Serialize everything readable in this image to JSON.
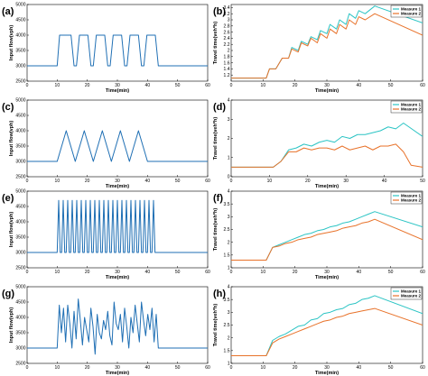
{
  "figure": {
    "panels": [
      {
        "id": "a",
        "label": "(a)"
      },
      {
        "id": "b",
        "label": "(b)"
      },
      {
        "id": "c",
        "label": "(c)"
      },
      {
        "id": "d",
        "label": "(d)"
      },
      {
        "id": "e",
        "label": "(e)"
      },
      {
        "id": "f",
        "label": "(f)"
      },
      {
        "id": "g",
        "label": "(g)"
      },
      {
        "id": "h",
        "label": "(h)"
      }
    ]
  },
  "colors": {
    "flow": "#1f6fb4",
    "measure1": "#2bc4c4",
    "measure2": "#e8722a",
    "axis": "#000000"
  },
  "chart_data": [
    {
      "id": "a",
      "type": "line",
      "xlabel": "Time(min)",
      "ylabel": "Input flow(vph)",
      "xlim": [
        0,
        60
      ],
      "ylim": [
        2500,
        5000
      ],
      "xticks": [
        0,
        10,
        20,
        30,
        40,
        50,
        60
      ],
      "yticks": [
        2500,
        3000,
        3500,
        4000,
        4500,
        5000
      ],
      "series": [
        {
          "x": [
            0,
            10,
            10.8,
            11.8,
            14.6,
            15.6,
            16.4,
            17.4,
            20.2,
            21.2,
            22,
            23,
            25.8,
            26.8,
            27.6,
            28.6,
            31.4,
            32.4,
            33.2,
            34.2,
            37,
            38,
            38.8,
            39.8,
            42.6,
            43.6,
            60
          ],
          "y": [
            3000,
            3000,
            4000,
            4000,
            4000,
            3000,
            3000,
            4000,
            4000,
            3000,
            3000,
            4000,
            4000,
            3000,
            3000,
            4000,
            4000,
            3000,
            3000,
            4000,
            4000,
            3000,
            3000,
            4000,
            4000,
            3000,
            3000
          ]
        }
      ]
    },
    {
      "id": "b",
      "type": "line",
      "xlabel": "Time(min)",
      "ylabel": "Travel time(veh*h)",
      "xlim": [
        0,
        60
      ],
      "ylim": [
        1,
        3.5
      ],
      "xticks": [
        0,
        10,
        20,
        30,
        40,
        50,
        60
      ],
      "yticks": [
        1.2,
        1.4,
        1.6,
        1.8,
        2,
        2.2,
        2.4,
        2.6,
        2.8,
        3,
        3.2,
        3.4
      ],
      "legend": {
        "position": "top-right",
        "entries": [
          "Measure 1",
          "Measure 2"
        ]
      },
      "series": [
        {
          "name": "Measure 1",
          "x": [
            0,
            11,
            12,
            14,
            16,
            18,
            19,
            21,
            22,
            24,
            25,
            27,
            28,
            30,
            31,
            33,
            34,
            36,
            37,
            39,
            40,
            42,
            45,
            60
          ],
          "y": [
            1.1,
            1.1,
            1.4,
            1.4,
            1.75,
            1.75,
            2.1,
            2,
            2.3,
            2.2,
            2.45,
            2.35,
            2.65,
            2.55,
            2.85,
            2.7,
            3.0,
            2.85,
            3.2,
            3.05,
            3.3,
            3.2,
            3.45,
            2.9
          ]
        },
        {
          "name": "Measure 2",
          "x": [
            0,
            11,
            12,
            14,
            16,
            18,
            19,
            21,
            22,
            24,
            25,
            27,
            28,
            30,
            31,
            33,
            34,
            36,
            37,
            39,
            40,
            42,
            45,
            60
          ],
          "y": [
            1.1,
            1.1,
            1.4,
            1.4,
            1.75,
            1.75,
            2.05,
            1.95,
            2.25,
            2.15,
            2.4,
            2.25,
            2.55,
            2.4,
            2.7,
            2.55,
            2.85,
            2.7,
            3.0,
            2.85,
            3.1,
            3.0,
            3.2,
            2.5
          ]
        }
      ]
    },
    {
      "id": "c",
      "type": "line",
      "xlabel": "Time(min)",
      "ylabel": "Input flow(vph)",
      "xlim": [
        0,
        60
      ],
      "ylim": [
        2500,
        5000
      ],
      "xticks": [
        0,
        10,
        20,
        30,
        40,
        50,
        60
      ],
      "yticks": [
        2500,
        3000,
        3500,
        4000,
        4500,
        5000
      ],
      "series": [
        {
          "x": [
            0,
            10,
            13,
            16,
            19,
            22,
            25,
            28,
            31,
            34,
            37,
            40,
            43,
            60
          ],
          "y": [
            3000,
            3000,
            4000,
            3000,
            4000,
            3000,
            4000,
            3000,
            4000,
            3000,
            4000,
            3000,
            3000,
            3000
          ]
        }
      ]
    },
    {
      "id": "d",
      "type": "line",
      "xlabel": "Time(min)",
      "ylabel": "Travel time(veh*h)",
      "xlim": [
        0,
        50
      ],
      "ylim": [
        0,
        4
      ],
      "xticks": [
        0,
        10,
        20,
        30,
        40,
        50
      ],
      "yticks": [
        0,
        1,
        2,
        3,
        4
      ],
      "legend": {
        "position": "top-right",
        "entries": [
          "Measure 1",
          "Measure 2"
        ]
      },
      "series": [
        {
          "name": "Measure 1",
          "x": [
            0,
            11,
            13,
            15,
            17,
            19,
            21,
            23,
            25,
            27,
            29,
            31,
            33,
            35,
            37,
            39,
            41,
            43,
            45,
            50
          ],
          "y": [
            0.5,
            0.5,
            0.8,
            1.4,
            1.5,
            1.7,
            1.6,
            1.8,
            1.9,
            1.8,
            2.1,
            2.0,
            2.2,
            2.2,
            2.3,
            2.4,
            2.6,
            2.5,
            2.8,
            2.1
          ]
        },
        {
          "name": "Measure 2",
          "x": [
            0,
            11,
            13,
            15,
            17,
            19,
            21,
            23,
            25,
            27,
            29,
            31,
            33,
            35,
            37,
            39,
            41,
            43,
            45,
            47,
            50
          ],
          "y": [
            0.5,
            0.5,
            0.8,
            1.3,
            1.3,
            1.5,
            1.4,
            1.5,
            1.5,
            1.4,
            1.6,
            1.4,
            1.5,
            1.6,
            1.4,
            1.6,
            1.6,
            1.7,
            1.3,
            0.6,
            0.5
          ]
        }
      ]
    },
    {
      "id": "e",
      "type": "line",
      "xlabel": "Time(min)",
      "ylabel": "Input flow(vph)",
      "xlim": [
        0,
        60
      ],
      "ylim": [
        2500,
        5000
      ],
      "xticks": [
        0,
        10,
        20,
        30,
        40,
        50,
        60
      ],
      "yticks": [
        2500,
        3000,
        3500,
        4000,
        4500,
        5000
      ],
      "series": [
        {
          "x": [
            0,
            10,
            10.5,
            11,
            11.5,
            12,
            12.5,
            13,
            13.5,
            14,
            14.5,
            15,
            15.5,
            16,
            16.5,
            17,
            17.5,
            18,
            18.5,
            19,
            19.5,
            20,
            20.5,
            21,
            21.5,
            22,
            22.5,
            23,
            23.5,
            24,
            24.5,
            25,
            25.5,
            26,
            26.5,
            27,
            27.5,
            28,
            28.5,
            29,
            29.5,
            30,
            30.5,
            31,
            31.5,
            32,
            32.5,
            33,
            33.5,
            34,
            34.5,
            35,
            35.5,
            36,
            36.5,
            37,
            37.5,
            38,
            38.5,
            39,
            39.5,
            40,
            40.5,
            41,
            41.5,
            42,
            42.5,
            43,
            60
          ],
          "y": [
            3000,
            3000,
            4700,
            3000,
            3000,
            4700,
            3000,
            3000,
            4700,
            3000,
            3000,
            4700,
            3000,
            3000,
            4700,
            3000,
            3000,
            4700,
            3000,
            3000,
            4700,
            3000,
            3000,
            4700,
            3000,
            3000,
            4700,
            3000,
            3000,
            4700,
            3000,
            3000,
            4700,
            3000,
            3000,
            4700,
            3000,
            3000,
            4700,
            3000,
            3000,
            4700,
            3000,
            3000,
            4700,
            3000,
            3000,
            4700,
            3000,
            3000,
            4700,
            3000,
            3000,
            4700,
            3000,
            3000,
            4700,
            3000,
            3000,
            4700,
            3000,
            3000,
            4700,
            3000,
            3000,
            4700,
            3000,
            3000,
            3000
          ]
        }
      ]
    },
    {
      "id": "f",
      "type": "line",
      "xlabel": "Time(min)",
      "ylabel": "Travel time(veh*h)",
      "xlim": [
        0,
        60
      ],
      "ylim": [
        1,
        4
      ],
      "xticks": [
        0,
        10,
        20,
        30,
        40,
        50,
        60
      ],
      "yticks": [
        1,
        1.5,
        2,
        2.5,
        3,
        3.5,
        4
      ],
      "legend": {
        "position": "top-right",
        "entries": [
          "Measure 1",
          "Measure 2"
        ]
      },
      "series": [
        {
          "name": "Measure 1",
          "x": [
            0,
            11,
            13,
            15,
            17,
            19,
            21,
            23,
            25,
            27,
            29,
            31,
            33,
            35,
            37,
            39,
            41,
            43,
            45,
            60
          ],
          "y": [
            1.3,
            1.3,
            1.8,
            1.9,
            2.0,
            2.1,
            2.2,
            2.3,
            2.35,
            2.45,
            2.5,
            2.6,
            2.65,
            2.75,
            2.8,
            2.9,
            3.0,
            3.1,
            3.2,
            2.6
          ]
        },
        {
          "name": "Measure 2",
          "x": [
            0,
            11,
            13,
            15,
            17,
            19,
            21,
            23,
            25,
            27,
            29,
            31,
            33,
            35,
            37,
            39,
            41,
            43,
            45,
            60
          ],
          "y": [
            1.3,
            1.3,
            1.8,
            1.85,
            1.95,
            2.0,
            2.1,
            2.15,
            2.2,
            2.3,
            2.35,
            2.4,
            2.45,
            2.55,
            2.6,
            2.65,
            2.75,
            2.8,
            2.9,
            2.1
          ]
        }
      ]
    },
    {
      "id": "g",
      "type": "line",
      "xlabel": "Time(min)",
      "ylabel": "Input flow(vph)",
      "xlim": [
        0,
        60
      ],
      "ylim": [
        2500,
        5000
      ],
      "xticks": [
        0,
        10,
        20,
        30,
        40,
        50,
        60
      ],
      "yticks": [
        2500,
        3000,
        3500,
        4000,
        4500,
        5000
      ],
      "series": [
        {
          "x": [
            0,
            10,
            10.7,
            11.4,
            12.1,
            12.8,
            13.5,
            14.2,
            14.9,
            15.6,
            16.3,
            17,
            17.7,
            18.4,
            19.1,
            19.8,
            20.5,
            21.2,
            21.9,
            22.6,
            23.3,
            24,
            24.7,
            25.4,
            26.1,
            26.8,
            27.5,
            28.2,
            28.9,
            29.6,
            30.3,
            31,
            31.7,
            32.4,
            33.1,
            33.8,
            34.5,
            35.2,
            35.9,
            36.6,
            37.3,
            38,
            38.7,
            39.4,
            40.1,
            40.8,
            41.5,
            42.2,
            42.9,
            43.6,
            60
          ],
          "y": [
            3000,
            3000,
            4400,
            3500,
            4300,
            3200,
            4400,
            3800,
            3000,
            4200,
            3300,
            4600,
            3900,
            3100,
            4000,
            3600,
            3200,
            4300,
            3700,
            2800,
            4100,
            3500,
            3300,
            3900,
            3600,
            4200,
            3400,
            3100,
            4500,
            3800,
            3600,
            4100,
            3200,
            4300,
            3700,
            3000,
            4000,
            3500,
            4400,
            3800,
            3200,
            4500,
            3900,
            3400,
            4100,
            3600,
            4300,
            3200,
            4100,
            3000,
            3000
          ]
        }
      ]
    },
    {
      "id": "h",
      "type": "line",
      "xlabel": "Time(min)",
      "ylabel": "Travel time(veh*h)",
      "xlim": [
        0,
        60
      ],
      "ylim": [
        1,
        4
      ],
      "xticks": [
        0,
        10,
        20,
        30,
        40,
        50,
        60
      ],
      "yticks": [
        1,
        1.5,
        2,
        2.5,
        3,
        3.5,
        4
      ],
      "legend": {
        "position": "top-right",
        "entries": [
          "Measure 1",
          "Measure 2"
        ]
      },
      "series": [
        {
          "name": "Measure 1",
          "x": [
            0,
            11,
            13,
            15,
            17,
            19,
            21,
            23,
            25,
            27,
            29,
            31,
            33,
            35,
            37,
            39,
            41,
            43,
            45,
            60
          ],
          "y": [
            1.3,
            1.3,
            1.9,
            2.05,
            2.15,
            2.3,
            2.45,
            2.5,
            2.7,
            2.75,
            2.95,
            3.0,
            3.1,
            3.15,
            3.3,
            3.35,
            3.5,
            3.55,
            3.65,
            2.95
          ]
        },
        {
          "name": "Measure 2",
          "x": [
            0,
            11,
            13,
            15,
            17,
            19,
            21,
            23,
            25,
            27,
            29,
            31,
            33,
            35,
            37,
            39,
            41,
            43,
            45,
            60
          ],
          "y": [
            1.3,
            1.3,
            1.8,
            1.95,
            2.05,
            2.15,
            2.25,
            2.35,
            2.45,
            2.55,
            2.65,
            2.7,
            2.8,
            2.85,
            2.95,
            3.0,
            3.05,
            3.1,
            3.15,
            2.5
          ]
        }
      ]
    }
  ]
}
